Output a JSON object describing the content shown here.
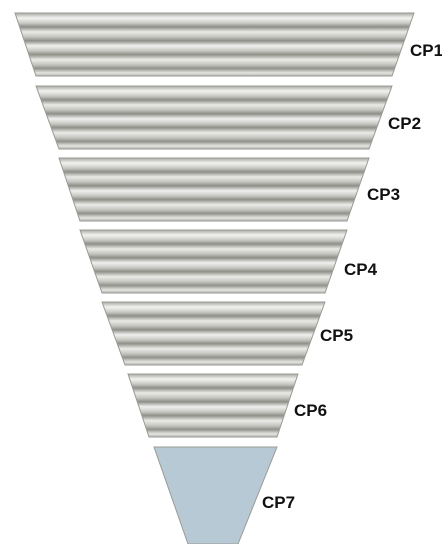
{
  "diagram": {
    "layers": [
      {
        "label": "CP1",
        "style": "corrugated"
      },
      {
        "label": "CP2",
        "style": "corrugated"
      },
      {
        "label": "CP3",
        "style": "corrugated"
      },
      {
        "label": "CP4",
        "style": "corrugated"
      },
      {
        "label": "CP5",
        "style": "corrugated"
      },
      {
        "label": "CP6",
        "style": "corrugated"
      },
      {
        "label": "CP7",
        "style": "plain"
      }
    ],
    "colors": {
      "corrugated_light": "#f1f1ef",
      "corrugated_dark": "#8e8e88",
      "corrugated_mid": "#c7c7c2",
      "plain_fill": "#b8c9d6",
      "outline": "#9a9a94"
    }
  }
}
